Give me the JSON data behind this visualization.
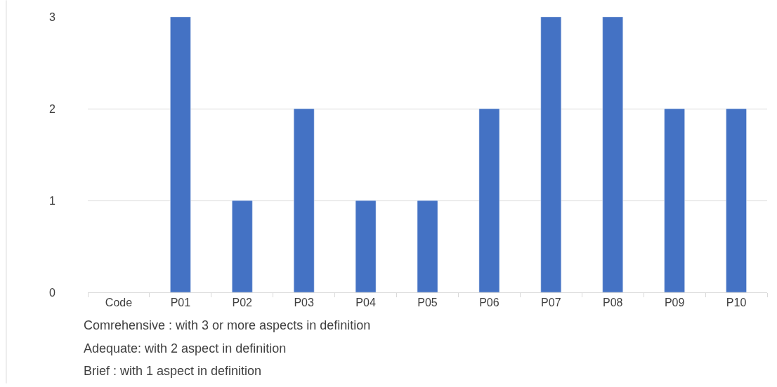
{
  "chart_data": {
    "type": "bar",
    "categories": [
      "Code",
      "P01",
      "P02",
      "P03",
      "P04",
      "P05",
      "P06",
      "P07",
      "P08",
      "P09",
      "P10"
    ],
    "values": [
      null,
      3,
      1,
      2,
      1,
      1,
      2,
      3,
      3,
      2,
      2
    ],
    "color": "#4472c4",
    "ylim": [
      0,
      3
    ],
    "yticks": [
      0,
      1,
      2,
      3
    ],
    "grid": "y",
    "annotations": [
      "Comrehensive : with 3 or more aspects in definition",
      "Adequate: with 2 aspect in definition",
      "Brief : with 1 aspect in definition"
    ]
  }
}
